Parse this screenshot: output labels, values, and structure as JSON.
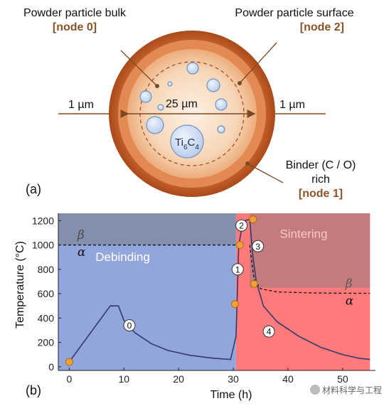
{
  "panel_a": {
    "panel_label": "(a)",
    "bulk_label": "Powder particle bulk",
    "bulk_node": "[node 0]",
    "surface_label": "Powder particle surface",
    "surface_node": "[node 2]",
    "binder_label_1": "Binder (C / O)",
    "binder_label_2": "rich",
    "binder_node": "[node 1]",
    "left_dim": "1 µm",
    "center_dim": "25 µm",
    "right_dim": "1 µm",
    "precipitate_label": "Ti",
    "precipitate_sub1": "6",
    "precipitate_mid": "C",
    "precipitate_sub2": "4"
  },
  "panel_b": {
    "panel_label": "(b)",
    "chart_data": {
      "type": "line",
      "xlabel": "Time (h)",
      "ylabel": "Temperature (°C)",
      "xlim": [
        -2,
        56
      ],
      "ylim": [
        -30,
        1260
      ],
      "xticks": [
        0,
        10,
        20,
        30,
        40,
        50
      ],
      "yticks": [
        0,
        200,
        400,
        600,
        800,
        1000,
        1200
      ],
      "regions": [
        {
          "label": "Debinding",
          "from": -2,
          "to": 30.5,
          "color": "#a9b7e0"
        },
        {
          "label": "Sintering",
          "from": 30.5,
          "to": 55,
          "color": "#ff8f8f"
        }
      ],
      "phase_labels": {
        "beta": "β",
        "alpha": "α"
      },
      "transus_debinding": 1000,
      "curve": [
        [
          0,
          40
        ],
        [
          7.5,
          500
        ],
        [
          9,
          500
        ],
        [
          10,
          380
        ],
        [
          12,
          280
        ],
        [
          15,
          190
        ],
        [
          18,
          135
        ],
        [
          22,
          95
        ],
        [
          26,
          72
        ],
        [
          29.5,
          60
        ],
        [
          30.5,
          250
        ],
        [
          31,
          1000
        ],
        [
          31.8,
          1195
        ],
        [
          33,
          1210
        ],
        [
          33.6,
          900
        ],
        [
          34.2,
          700
        ],
        [
          35.5,
          500
        ],
        [
          38,
          370
        ],
        [
          42,
          250
        ],
        [
          46,
          160
        ],
        [
          50,
          100
        ],
        [
          53,
          70
        ],
        [
          55,
          60
        ]
      ],
      "transus_curve": [
        [
          33.0,
          1000
        ],
        [
          33.4,
          850
        ],
        [
          33.8,
          720
        ],
        [
          35,
          640
        ],
        [
          38,
          615
        ],
        [
          44,
          607
        ],
        [
          50,
          604
        ],
        [
          55,
          603
        ]
      ],
      "markers": [
        {
          "x": 0,
          "y": 40
        },
        {
          "x": 30.3,
          "y": 515
        },
        {
          "x": 31.2,
          "y": 1000
        },
        {
          "x": 33.8,
          "y": 680
        },
        {
          "x": 33.6,
          "y": 1210
        }
      ],
      "stage_labels": [
        {
          "text": "0",
          "x": 11,
          "y": 340
        },
        {
          "text": "1",
          "x": 30.8,
          "y": 800
        },
        {
          "text": "2",
          "x": 31.5,
          "y": 1160
        },
        {
          "text": "3",
          "x": 34.5,
          "y": 990
        },
        {
          "text": "4",
          "x": 36.5,
          "y": 290
        }
      ]
    }
  },
  "watermark": "材料科学与工程"
}
